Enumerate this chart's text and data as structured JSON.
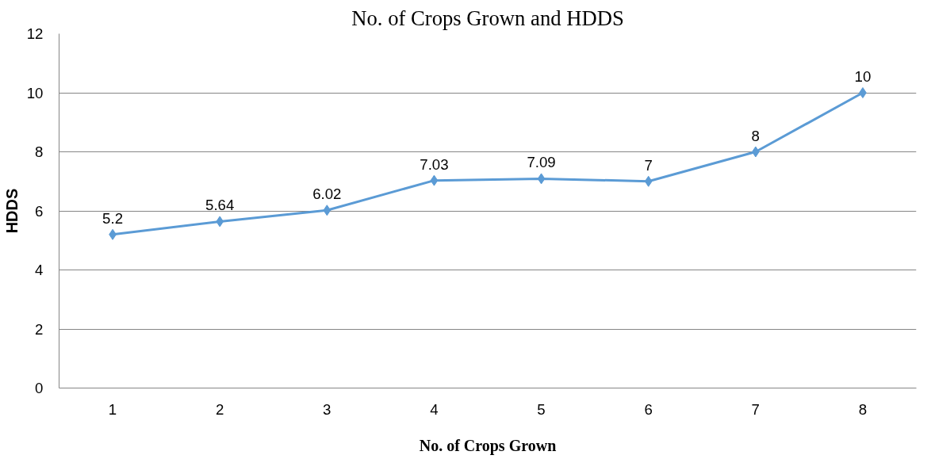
{
  "chart_data": {
    "type": "line",
    "title": "No. of Crops Grown and HDDS",
    "xlabel": "No. of Crops Grown",
    "ylabel": "HDDS",
    "categories": [
      "1",
      "2",
      "3",
      "4",
      "5",
      "6",
      "7",
      "8"
    ],
    "series": [
      {
        "color": "#5b9bd5",
        "values": [
          5.2,
          5.64,
          6.02,
          7.03,
          7.09,
          7,
          8,
          10
        ]
      }
    ],
    "ylim": [
      0,
      12
    ],
    "yticks": [
      0,
      2,
      4,
      6,
      8,
      10,
      12
    ],
    "grid": "y",
    "marker": "diamond",
    "line_style": "solid",
    "data_labels": true
  }
}
